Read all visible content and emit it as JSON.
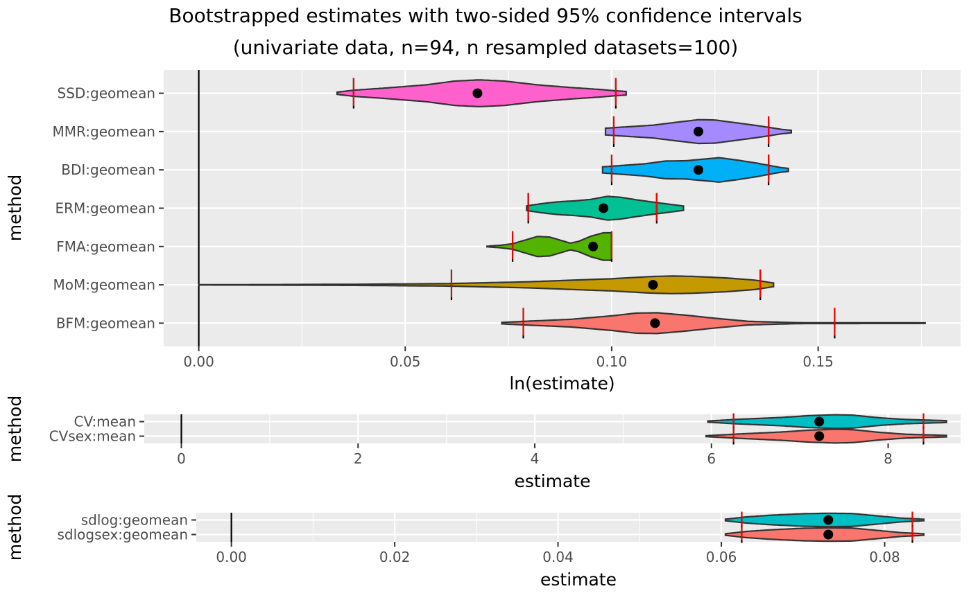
{
  "title_line1": "Bootstrapped estimates with two-sided 95% confidence intervals",
  "title_line2": "(univariate data, n=94, n resampled datasets=100)",
  "chart_data": [
    {
      "type": "violin",
      "xlabel": "ln(estimate)",
      "ylabel": "method",
      "xlim": [
        -0.0085,
        0.1845
      ],
      "xticks": [
        0.0,
        0.05,
        0.1,
        0.15
      ],
      "xtick_labels": [
        "0.00",
        "0.05",
        "0.10",
        "0.15"
      ],
      "xminor": [
        0.025,
        0.075,
        0.125,
        0.175
      ],
      "reference_line": 0,
      "series": [
        {
          "method": "SSD:geomean",
          "color": "#FF61CC",
          "estimate": 0.0675,
          "ci_low": 0.0375,
          "ci_high": 0.101,
          "range": [
            0.0335,
            0.1035
          ],
          "profile": [
            [
              0.0335,
              0.07
            ],
            [
              0.0375,
              0.2
            ],
            [
              0.045,
              0.34
            ],
            [
              0.055,
              0.55
            ],
            [
              0.062,
              0.8
            ],
            [
              0.068,
              0.88
            ],
            [
              0.074,
              0.8
            ],
            [
              0.082,
              0.55
            ],
            [
              0.09,
              0.38
            ],
            [
              0.097,
              0.25
            ],
            [
              0.101,
              0.16
            ],
            [
              0.1035,
              0.12
            ]
          ]
        },
        {
          "method": "MMR:geomean",
          "color": "#A58AFF",
          "estimate": 0.121,
          "ci_low": 0.1005,
          "ci_high": 0.138,
          "range": [
            0.0985,
            0.1435
          ],
          "profile": [
            [
              0.0985,
              0.22
            ],
            [
              0.103,
              0.3
            ],
            [
              0.11,
              0.42
            ],
            [
              0.116,
              0.62
            ],
            [
              0.121,
              0.78
            ],
            [
              0.125,
              0.76
            ],
            [
              0.13,
              0.58
            ],
            [
              0.135,
              0.4
            ],
            [
              0.138,
              0.28
            ],
            [
              0.141,
              0.15
            ],
            [
              0.1435,
              0.08
            ]
          ]
        },
        {
          "method": "BDI:geomean",
          "color": "#00B0F6",
          "estimate": 0.121,
          "ci_low": 0.1,
          "ci_high": 0.138,
          "range": [
            0.0978,
            0.1428
          ],
          "profile": [
            [
              0.0978,
              0.2
            ],
            [
              0.102,
              0.28
            ],
            [
              0.108,
              0.4
            ],
            [
              0.113,
              0.58
            ],
            [
              0.118,
              0.6
            ],
            [
              0.122,
              0.7
            ],
            [
              0.126,
              0.8
            ],
            [
              0.131,
              0.62
            ],
            [
              0.135,
              0.45
            ],
            [
              0.138,
              0.3
            ],
            [
              0.141,
              0.15
            ],
            [
              0.1428,
              0.1
            ]
          ]
        },
        {
          "method": "ERM:geomean",
          "color": "#00C094",
          "estimate": 0.098,
          "ci_low": 0.0798,
          "ci_high": 0.1109,
          "range": [
            0.0794,
            0.1174
          ],
          "profile": [
            [
              0.0794,
              0.15
            ],
            [
              0.083,
              0.3
            ],
            [
              0.087,
              0.42
            ],
            [
              0.091,
              0.48
            ],
            [
              0.095,
              0.58
            ],
            [
              0.099,
              0.78
            ],
            [
              0.102,
              0.72
            ],
            [
              0.106,
              0.55
            ],
            [
              0.11,
              0.4
            ],
            [
              0.114,
              0.26
            ],
            [
              0.1174,
              0.14
            ]
          ]
        },
        {
          "method": "FMA:geomean",
          "color": "#53B400",
          "estimate": 0.0955,
          "ci_low": 0.076,
          "ci_high": 0.1,
          "range": [
            0.0698,
            0.1
          ],
          "profile": [
            [
              0.0698,
              0.02
            ],
            [
              0.073,
              0.08
            ],
            [
              0.076,
              0.18
            ],
            [
              0.079,
              0.42
            ],
            [
              0.082,
              0.66
            ],
            [
              0.085,
              0.62
            ],
            [
              0.088,
              0.38
            ],
            [
              0.09,
              0.22
            ],
            [
              0.092,
              0.34
            ],
            [
              0.095,
              0.68
            ],
            [
              0.098,
              0.9
            ],
            [
              0.1,
              0.9
            ]
          ]
        },
        {
          "method": "MoM:geomean",
          "color": "#C49A00",
          "estimate": 0.11,
          "ci_low": 0.0612,
          "ci_high": 0.136,
          "range": [
            0.0,
            0.1392
          ],
          "profile": [
            [
              0.0,
              0.01
            ],
            [
              0.02,
              0.02
            ],
            [
              0.04,
              0.04
            ],
            [
              0.06,
              0.08
            ],
            [
              0.08,
              0.2
            ],
            [
              0.09,
              0.3
            ],
            [
              0.1,
              0.4
            ],
            [
              0.11,
              0.55
            ],
            [
              0.115,
              0.58
            ],
            [
              0.12,
              0.55
            ],
            [
              0.128,
              0.45
            ],
            [
              0.135,
              0.3
            ],
            [
              0.1392,
              0.12
            ]
          ]
        },
        {
          "method": "BFM:geomean",
          "color": "#F8766D",
          "estimate": 0.1105,
          "ci_low": 0.0786,
          "ci_high": 0.154,
          "range": [
            0.0734,
            0.1759
          ],
          "profile": [
            [
              0.0734,
              0.05
            ],
            [
              0.079,
              0.12
            ],
            [
              0.09,
              0.25
            ],
            [
              0.1,
              0.48
            ],
            [
              0.106,
              0.66
            ],
            [
              0.111,
              0.68
            ],
            [
              0.118,
              0.52
            ],
            [
              0.125,
              0.32
            ],
            [
              0.133,
              0.12
            ],
            [
              0.145,
              0.03
            ],
            [
              0.1759,
              0.02
            ]
          ]
        }
      ]
    },
    {
      "type": "violin",
      "xlabel": "estimate",
      "ylabel": "method",
      "xlim": [
        -0.42,
        8.82
      ],
      "xticks": [
        0,
        2,
        4,
        6,
        8
      ],
      "xtick_labels": [
        "0",
        "2",
        "4",
        "6",
        "8"
      ],
      "xminor": [
        1,
        3,
        5,
        7
      ],
      "reference_line": 0,
      "series": [
        {
          "method": "CV:mean",
          "color": "#00BFC4",
          "estimate": 7.22,
          "ci_low": 6.25,
          "ci_high": 8.4,
          "range": [
            5.96,
            8.66
          ],
          "profile": [
            [
              5.96,
              0.08
            ],
            [
              6.3,
              0.3
            ],
            [
              6.8,
              0.55
            ],
            [
              7.1,
              0.78
            ],
            [
              7.4,
              0.9
            ],
            [
              7.6,
              0.85
            ],
            [
              7.9,
              0.5
            ],
            [
              8.2,
              0.28
            ],
            [
              8.66,
              0.12
            ]
          ]
        },
        {
          "method": "CVsex:mean",
          "color": "#F8766D",
          "estimate": 7.22,
          "ci_low": 6.25,
          "ci_high": 8.4,
          "range": [
            5.94,
            8.66
          ],
          "profile": [
            [
              5.94,
              0.06
            ],
            [
              6.3,
              0.28
            ],
            [
              6.8,
              0.55
            ],
            [
              7.1,
              0.78
            ],
            [
              7.4,
              0.9
            ],
            [
              7.6,
              0.85
            ],
            [
              7.9,
              0.5
            ],
            [
              8.2,
              0.25
            ],
            [
              8.66,
              0.1
            ]
          ]
        }
      ]
    },
    {
      "type": "violin",
      "xlabel": "estimate",
      "ylabel": "method",
      "xlim": [
        -0.0043,
        0.0893
      ],
      "xticks": [
        0.0,
        0.02,
        0.04,
        0.06,
        0.08
      ],
      "xtick_labels": [
        "0.00",
        "0.02",
        "0.04",
        "0.06",
        "0.08"
      ],
      "xminor": [
        0.01,
        0.03,
        0.05,
        0.07
      ],
      "reference_line": 0,
      "series": [
        {
          "method": "sdlog:geomean",
          "color": "#00BFC4",
          "estimate": 0.0731,
          "ci_low": 0.0625,
          "ci_high": 0.0834,
          "range": [
            0.0605,
            0.0848
          ],
          "profile": [
            [
              0.0605,
              0.1
            ],
            [
              0.063,
              0.4
            ],
            [
              0.066,
              0.62
            ],
            [
              0.07,
              0.82
            ],
            [
              0.073,
              0.88
            ],
            [
              0.076,
              0.85
            ],
            [
              0.079,
              0.55
            ],
            [
              0.082,
              0.25
            ],
            [
              0.0848,
              0.1
            ]
          ]
        },
        {
          "method": "sdlogsex:geomean",
          "color": "#F8766D",
          "estimate": 0.0731,
          "ci_low": 0.0625,
          "ci_high": 0.0834,
          "range": [
            0.0605,
            0.0848
          ],
          "profile": [
            [
              0.0605,
              0.1
            ],
            [
              0.063,
              0.4
            ],
            [
              0.066,
              0.62
            ],
            [
              0.07,
              0.82
            ],
            [
              0.073,
              0.88
            ],
            [
              0.076,
              0.85
            ],
            [
              0.079,
              0.55
            ],
            [
              0.082,
              0.25
            ],
            [
              0.0848,
              0.1
            ]
          ]
        }
      ]
    }
  ]
}
